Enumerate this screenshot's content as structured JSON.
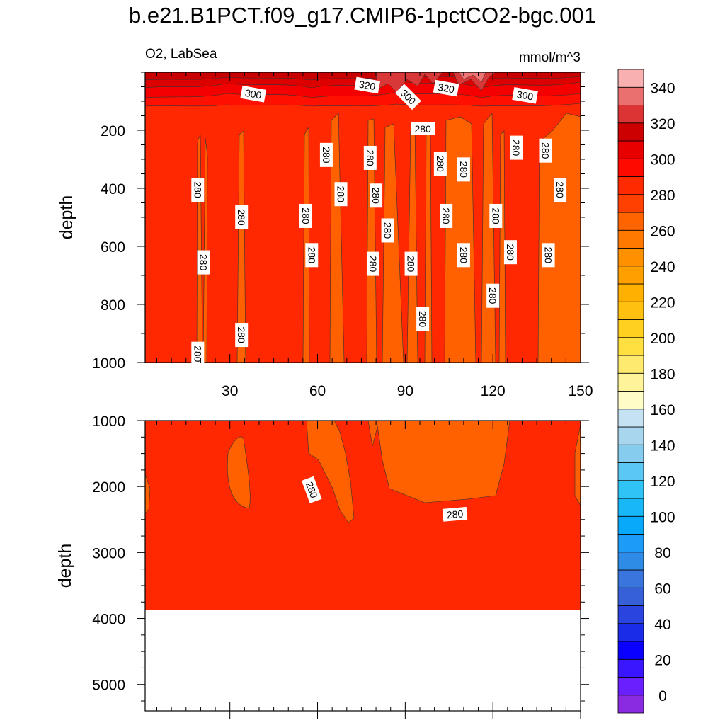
{
  "title": "b.e21.B1PCT.f09_g17.CMIP6-1pctCO2-bgc.001",
  "chart_data": [
    {
      "type": "contour",
      "panel": "upper",
      "left_label": "O2, LabSea",
      "right_label": "mmol/m^3",
      "ylabel": "depth",
      "xlabel": "",
      "xlim": [
        1,
        150
      ],
      "ylim": [
        1000,
        0
      ],
      "x_ticks": [
        30,
        60,
        90,
        120,
        150
      ],
      "x_tick_labels": [
        "30",
        "60",
        "90",
        "120",
        "150"
      ],
      "y_ticks": [
        200,
        400,
        600,
        800,
        1000
      ],
      "y_tick_labels": [
        "200",
        "400",
        "600",
        "800",
        "1000"
      ],
      "dominant_band": [
        280,
        290
      ],
      "surface_layer": "values 300-350 in top ~100 m",
      "contour_labels": [
        {
          "text": "300",
          "x": 38,
          "y": 75
        },
        {
          "text": "320",
          "x": 77,
          "y": 45
        },
        {
          "text": "300",
          "x": 91,
          "y": 85
        },
        {
          "text": "320",
          "x": 104,
          "y": 55
        },
        {
          "text": "300",
          "x": 131,
          "y": 80
        },
        {
          "text": "280",
          "x": 96,
          "y": 195
        },
        {
          "text": "280",
          "x": 63,
          "y": 285
        },
        {
          "text": "280",
          "x": 78,
          "y": 295
        },
        {
          "text": "280",
          "x": 102,
          "y": 315
        },
        {
          "text": "280",
          "x": 110,
          "y": 335
        },
        {
          "text": "280",
          "x": 128,
          "y": 260
        },
        {
          "text": "280",
          "x": 138,
          "y": 270
        },
        {
          "text": "280",
          "x": 19,
          "y": 405
        },
        {
          "text": "280",
          "x": 68,
          "y": 420
        },
        {
          "text": "280",
          "x": 80,
          "y": 425
        },
        {
          "text": "280",
          "x": 143,
          "y": 405
        },
        {
          "text": "280",
          "x": 34,
          "y": 500
        },
        {
          "text": "280",
          "x": 56,
          "y": 495
        },
        {
          "text": "280",
          "x": 104,
          "y": 495
        },
        {
          "text": "280",
          "x": 121,
          "y": 495
        },
        {
          "text": "280",
          "x": 84,
          "y": 545
        },
        {
          "text": "280",
          "x": 21,
          "y": 655
        },
        {
          "text": "280",
          "x": 58,
          "y": 630
        },
        {
          "text": "280",
          "x": 79,
          "y": 660
        },
        {
          "text": "280",
          "x": 92,
          "y": 660
        },
        {
          "text": "280",
          "x": 110,
          "y": 630
        },
        {
          "text": "280",
          "x": 126,
          "y": 620
        },
        {
          "text": "280",
          "x": 139,
          "y": 630
        },
        {
          "text": "280",
          "x": 120,
          "y": 770
        },
        {
          "text": "280",
          "x": 96,
          "y": 850
        },
        {
          "text": "280",
          "x": 34,
          "y": 905
        },
        {
          "text": "280",
          "x": 19,
          "y": 970
        }
      ]
    },
    {
      "type": "contour",
      "panel": "lower",
      "ylabel": "depth",
      "xlim": [
        1,
        150
      ],
      "ylim": [
        5400,
        1000
      ],
      "y_ticks": [
        1000,
        2000,
        3000,
        4000,
        5000
      ],
      "y_tick_labels": [
        "1000",
        "2000",
        "3000",
        "4000",
        "5000"
      ],
      "x_ticks": [
        30,
        60,
        90,
        120,
        150
      ],
      "dominant_band": [
        280,
        290
      ],
      "bottom_of_data": 3870,
      "contour_labels": [
        {
          "text": "280",
          "x": 58,
          "y": 2050
        },
        {
          "text": "280",
          "x": 107,
          "y": 2420
        }
      ]
    }
  ],
  "colorbar": {
    "levels": [
      0,
      10,
      20,
      30,
      40,
      50,
      60,
      70,
      80,
      90,
      100,
      110,
      120,
      130,
      140,
      150,
      160,
      170,
      180,
      190,
      200,
      210,
      220,
      230,
      240,
      250,
      260,
      270,
      280,
      290,
      300,
      310,
      320,
      330,
      340,
      350
    ],
    "tick_labels": [
      "0",
      "20",
      "40",
      "60",
      "80",
      "100",
      "120",
      "140",
      "160",
      "180",
      "200",
      "220",
      "240",
      "260",
      "280",
      "300",
      "320",
      "340"
    ],
    "colors": [
      "#8a2be2",
      "#6a1fff",
      "#3a16ff",
      "#0a00ff",
      "#1a2ce8",
      "#2a44e0",
      "#3560d8",
      "#3a74dd",
      "#2f8ce6",
      "#1c9cf6",
      "#08a8fa",
      "#18b8f8",
      "#30c4f6",
      "#5ac8f2",
      "#86ccee",
      "#a8d6ee",
      "#c4e2f2",
      "#fffcc8",
      "#fff49a",
      "#ffea70",
      "#ffe040",
      "#ffd020",
      "#ffc010",
      "#ffb000",
      "#ffa000",
      "#ff9000",
      "#ff7800",
      "#ff6400",
      "#ff4000",
      "#ff2a00",
      "#ff0a00",
      "#e80000",
      "#cc0000",
      "#dc3434",
      "#ea7070",
      "#f8b0b0"
    ]
  },
  "colors": {
    "band_280": "#ff2800",
    "band_270": "#ff6000",
    "band_290": "#ff1000",
    "band_300": "#f40000",
    "band_310": "#dd0000",
    "band_320": "#c80000",
    "band_330": "#d83838",
    "band_340": "#ec7474"
  }
}
